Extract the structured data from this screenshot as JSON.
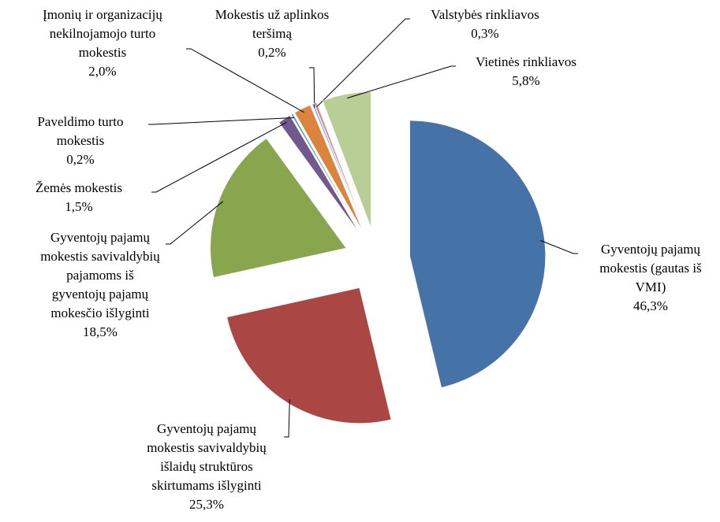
{
  "chart_data": {
    "type": "pie",
    "categories": [
      "Gyventojų pajamų mokestis (gautas iš VMI)",
      "Gyventojų pajamų mokestis savivaldybių išlaidų struktūros skirtumams išlyginti",
      "Gyventojų pajamų mokestis savivaldybių pajamoms iš gyventojų pajamų mokesčio išlyginti",
      "Žemės mokestis",
      "Paveldimo turto mokestis",
      "Įmonių ir organizacijų nekilnojamojo turto mokestis",
      "Mokestis už aplinkos teršimą",
      "Valstybės rinkliavos",
      "Vietinės rinkliavos"
    ],
    "values": [
      46.3,
      25.3,
      18.5,
      1.5,
      0.2,
      2.0,
      0.2,
      0.3,
      5.8
    ],
    "value_labels": [
      "46,3%",
      "25,3%",
      "18,5%",
      "1,5%",
      "0,2%",
      "2,0%",
      "0,2%",
      "0,3%",
      "5,8%"
    ],
    "colors": [
      "#4572a7",
      "#aa4643",
      "#89a54e",
      "#71588f",
      "#4198af",
      "#db843d",
      "#93a9cf",
      "#d19392",
      "#b9cd96"
    ]
  }
}
